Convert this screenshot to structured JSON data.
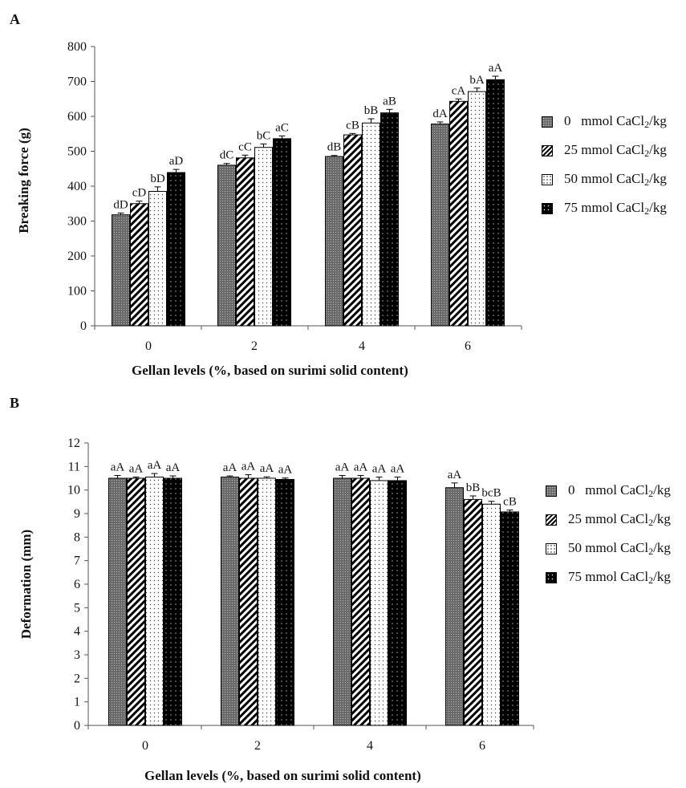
{
  "chart_data": [
    {
      "panel_label": "A",
      "type": "bar",
      "ylabel": "Breaking force (g)",
      "xlabel": "Gellan levels (%, based on surimi solid content)",
      "categories": [
        "0",
        "2",
        "4",
        "6"
      ],
      "ylim": [
        0,
        800
      ],
      "yticks": [
        "0",
        "100",
        "200",
        "300",
        "400",
        "500",
        "600",
        "700",
        "800"
      ],
      "legend_position": "right",
      "grid": false,
      "series": [
        {
          "name": "0 mmol CaCl2/kg",
          "values": [
            318,
            460,
            485,
            578
          ],
          "errors": [
            5,
            5,
            3,
            6
          ],
          "labels": [
            "dD",
            "dC",
            "dB",
            "dA"
          ]
        },
        {
          "name": "25 mmol CaCl2/kg",
          "values": [
            350,
            481,
            547,
            643
          ],
          "errors": [
            7,
            8,
            4,
            7
          ],
          "labels": [
            "cD",
            "cC",
            "cB",
            "cA"
          ]
        },
        {
          "name": "50 mmol CaCl2/kg",
          "values": [
            385,
            511,
            581,
            671
          ],
          "errors": [
            13,
            10,
            12,
            10
          ],
          "labels": [
            "bD",
            "bC",
            "bB",
            "bA"
          ]
        },
        {
          "name": "75 mmol CaCl2/kg",
          "values": [
            439,
            536,
            610,
            705
          ],
          "errors": [
            9,
            8,
            10,
            10
          ],
          "labels": [
            "aD",
            "aC",
            "aB",
            "aA"
          ]
        }
      ]
    },
    {
      "panel_label": "B",
      "type": "bar",
      "ylabel": "Deformation (mm)",
      "xlabel": "Gellan levels (%, based on surimi solid content)",
      "categories": [
        "0",
        "2",
        "4",
        "6"
      ],
      "ylim": [
        0,
        12
      ],
      "yticks": [
        "0",
        "1",
        "2",
        "3",
        "4",
        "5",
        "6",
        "7",
        "8",
        "9",
        "10",
        "11",
        "12"
      ],
      "legend_position": "right",
      "grid": false,
      "series": [
        {
          "name": "0 mmol CaCl2/kg",
          "values": [
            10.5,
            10.55,
            10.5,
            10.1
          ],
          "errors": [
            0.12,
            0.05,
            0.12,
            0.2
          ],
          "labels": [
            "aA",
            "aA",
            "aA",
            "aA"
          ]
        },
        {
          "name": "25 mmol CaCl2/kg",
          "values": [
            10.5,
            10.5,
            10.5,
            9.6
          ],
          "errors": [
            0.05,
            0.15,
            0.12,
            0.15
          ],
          "labels": [
            "aA",
            "aA",
            "aA",
            "bB"
          ]
        },
        {
          "name": "50 mmol CaCl2/kg",
          "values": [
            10.55,
            10.5,
            10.4,
            9.4
          ],
          "errors": [
            0.15,
            0.06,
            0.15,
            0.12
          ],
          "labels": [
            "aA",
            "aA",
            "aA",
            "bcB"
          ]
        },
        {
          "name": "75 mmol CaCl2/kg",
          "values": [
            10.5,
            10.45,
            10.4,
            9.07
          ],
          "errors": [
            0.1,
            0.06,
            0.15,
            0.08
          ],
          "labels": [
            "aA",
            "aA",
            "aA",
            "cB"
          ]
        }
      ]
    }
  ],
  "legend": {
    "items": [
      {
        "num": "0",
        "unit_prefix": "mmol CaCl",
        "sub": "2",
        "unit_suffix": "/kg"
      },
      {
        "num": "25",
        "unit_prefix": "mmol CaCl",
        "sub": "2",
        "unit_suffix": "/kg"
      },
      {
        "num": "50",
        "unit_prefix": "mmol CaCl",
        "sub": "2",
        "unit_suffix": "/kg"
      },
      {
        "num": "75",
        "unit_prefix": "mmol CaCl",
        "sub": "2",
        "unit_suffix": "/kg"
      }
    ]
  },
  "colors": {
    "series0_fill": "#6a6a6a",
    "series1_fill": "#ffffff",
    "series2_fill": "#ffffff",
    "series3_fill": "#000000",
    "axis": "#555555"
  }
}
